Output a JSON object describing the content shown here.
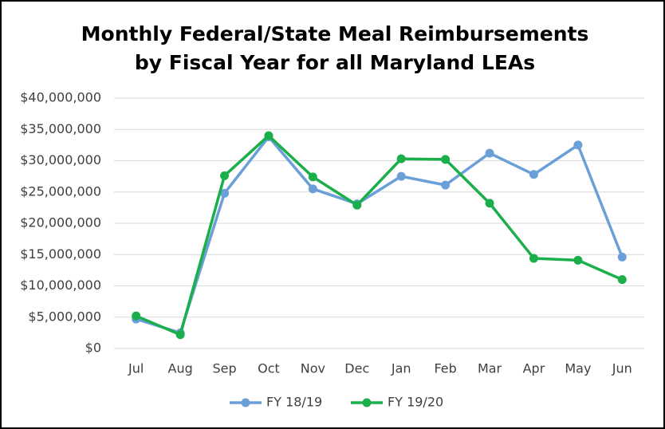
{
  "chart_data": {
    "type": "line",
    "title": [
      "Monthly Federal/State Meal Reimbursements",
      "by Fiscal Year for all Maryland LEAs"
    ],
    "categories": [
      "Jul",
      "Aug",
      "Sep",
      "Oct",
      "Nov",
      "Dec",
      "Jan",
      "Feb",
      "Mar",
      "Apr",
      "May",
      "Jun"
    ],
    "series": [
      {
        "name": "FY 18/19",
        "color": "#6a9fd8",
        "values": [
          4700000,
          2500000,
          24800000,
          33800000,
          25500000,
          23100000,
          27500000,
          26100000,
          31200000,
          27800000,
          32500000,
          14600000
        ]
      },
      {
        "name": "FY 19/20",
        "color": "#1aaf4a",
        "values": [
          5200000,
          2200000,
          27600000,
          34000000,
          27400000,
          22900000,
          30300000,
          30200000,
          23200000,
          14400000,
          14100000,
          11000000
        ]
      }
    ],
    "ylim": [
      0,
      40000000
    ],
    "yticks": [
      {
        "value": 0,
        "label": "$0"
      },
      {
        "value": 5000000,
        "label": "$5,000,000"
      },
      {
        "value": 10000000,
        "label": "$10,000,000"
      },
      {
        "value": 15000000,
        "label": "$15,000,000"
      },
      {
        "value": 20000000,
        "label": "$20,000,000"
      },
      {
        "value": 25000000,
        "label": "$25,000,000"
      },
      {
        "value": 30000000,
        "label": "$30,000,000"
      },
      {
        "value": 35000000,
        "label": "$35,000,000"
      },
      {
        "value": 40000000,
        "label": "$40,000,000"
      }
    ],
    "grid": true,
    "legend": "bottom"
  }
}
